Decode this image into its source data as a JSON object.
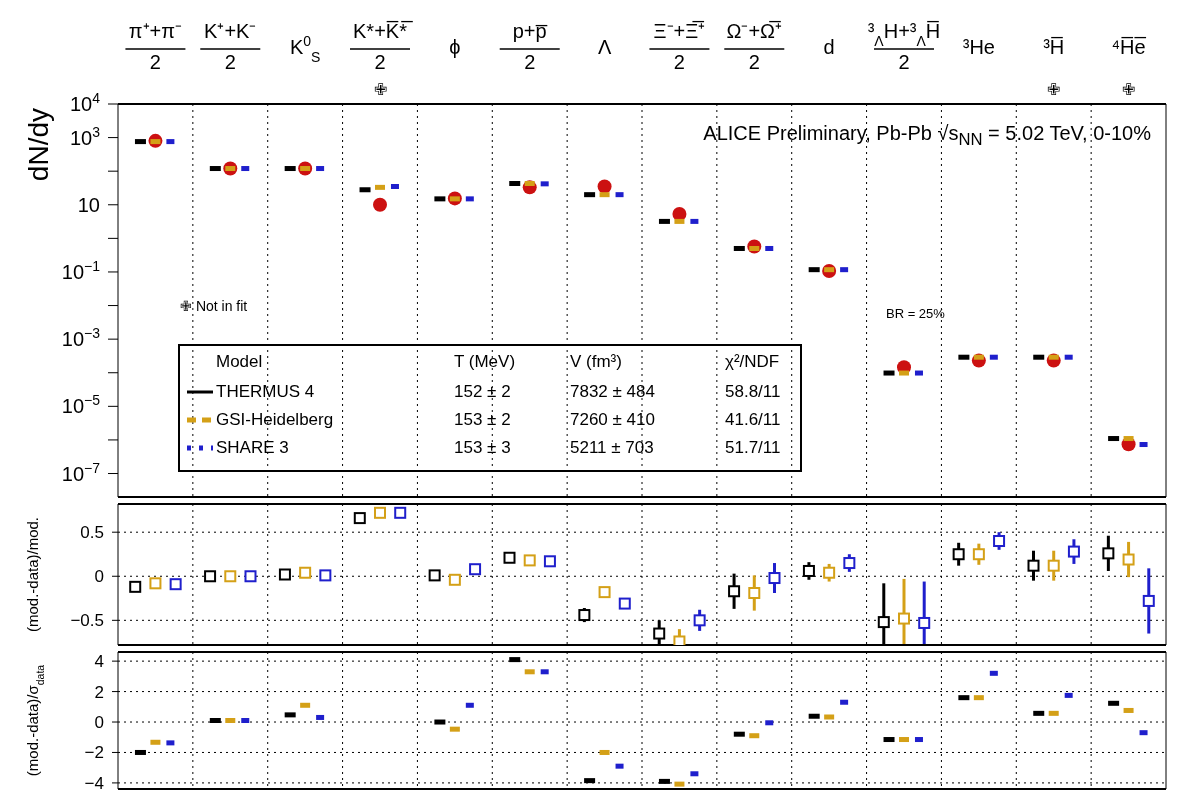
{
  "chart_data": [
    {
      "type": "scatter",
      "title": "ALICE Preliminary, Pb-Pb √s$_{NN}$ = 5.02 TeV, 0-10%",
      "ylabel": "dN/dy",
      "categories": [
        "π⁺+π⁻\n2",
        "K⁺+K⁻\n2",
        "K$^{0}$$_{S}$",
        "K*+K̅*̅\n2",
        "ϕ",
        "p+p̅\n2",
        "Λ",
        "Ξ⁻+Ξ̅⁺\n2",
        "Ω⁻+Ω̅⁺\n2",
        "d",
        "³$_{Λ}$H+³$_{Λ}$H̅\n2",
        "³He",
        "³H̅",
        "⁴H̅e̅"
      ],
      "log": true,
      "ylim": [
        2e-08,
        10000
      ],
      "yticks": [
        {
          "value": 10000,
          "label": "10$^{4}$"
        },
        {
          "value": 1000,
          "label": "10$^{3}$"
        },
        {
          "value": 100,
          "label": null
        },
        10,
        {
          "value": 1,
          "label": null
        },
        {
          "value": 0.1,
          "label": "10$^{−1}$"
        },
        {
          "value": 0.01,
          "label": null
        },
        {
          "value": 0.001,
          "label": "10$^{−3}$"
        },
        {
          "value": 0.0001,
          "label": null
        },
        {
          "value": 1e-05,
          "label": "10$^{−5}$"
        },
        {
          "value": 1e-06,
          "label": null
        },
        {
          "value": 1e-07,
          "label": "10$^{−7}$"
        }
      ],
      "grid": "x",
      "legend": "bottom left",
      "legend_title": "Model",
      "annotations": [
        "✙ Not in fit",
        "BR = 25%",
        "✙",
        "✙",
        "✙",
        "T (MeV)",
        "V (fm³)",
        "χ²/NDF",
        "152 ± 2",
        "7832 ± 484",
        "58.8/11",
        "153 ± 2",
        "7260 ± 410",
        "41.6/11",
        "153 ± 3",
        "5211 ± 703",
        "51.7/11"
      ],
      "series": [
        {
          "marker": "circle",
          "color": "#cc1111",
          "values": [
            800,
            120,
            120,
            10,
            15.5,
            33,
            35,
            5.3,
            0.57,
            0.107,
            0.000145,
            0.00023,
            0.00023,
            7.4e-07
          ]
        },
        {
          "name": "THERMUS 4",
          "color": "#000000",
          "line_style": "solid",
          "values": [
            760,
            120,
            120,
            28,
            15,
            43,
            20,
            3.2,
            0.5,
            0.117,
            9.8e-05,
            0.00029,
            0.00029,
            1.1e-06
          ]
        },
        {
          "name": "GSI-Heidelberg",
          "color": "#d4a017",
          "line_style": "dashed",
          "values": [
            760,
            120,
            120,
            33,
            15,
            43,
            20,
            3.2,
            0.5,
            0.117,
            9.8e-05,
            0.00029,
            0.00029,
            1.1e-06
          ]
        },
        {
          "name": "SHARE 3",
          "color": "#1f1fcc",
          "line_style": "dotted",
          "values": [
            760,
            120,
            120,
            35,
            15,
            42,
            20,
            3.2,
            0.5,
            0.117,
            9.8e-05,
            0.00029,
            0.00029,
            7.3e-07
          ]
        }
      ]
    },
    {
      "type": "scatter",
      "ylabel": "(mod.-data)/mod.",
      "categories": [
        null,
        null,
        null,
        null,
        null,
        null,
        null,
        null,
        null,
        null,
        null,
        null,
        null,
        null
      ],
      "tick_labels": "y",
      "ylim": [
        -0.78,
        0.82
      ],
      "yticks": [
        -0.5,
        0,
        0.5
      ],
      "grid": true,
      "marker": "square",
      "series": [
        {
          "color": "#000000",
          "values": [
            -0.12,
            0,
            0.02,
            0.66,
            0.01,
            0.21,
            -0.44,
            -0.65,
            -0.17,
            0.06,
            -0.52,
            0.25,
            0.12,
            0.26
          ],
          "errors": [
            null,
            null,
            null,
            null,
            0.03,
            null,
            0.08,
            [
              -0.78,
              -0.5
            ],
            0.2,
            0.1,
            [
              -0.78,
              -0.08
            ],
            0.13,
            0.17,
            0.2
          ]
        },
        {
          "color": "#d4a017",
          "values": [
            -0.08,
            0,
            0.04,
            0.72,
            -0.04,
            0.18,
            -0.18,
            -0.74,
            -0.19,
            0.04,
            -0.48,
            0.25,
            0.12,
            0.19
          ],
          "errors": [
            null,
            null,
            null,
            null,
            null,
            null,
            0.06,
            [
              -0.78,
              -0.6
            ],
            0.2,
            0.1,
            [
              -0.78,
              -0.03
            ],
            0.12,
            0.17,
            0.2
          ]
        },
        {
          "color": "#1f1fcc",
          "values": [
            -0.09,
            0,
            0.01,
            0.72,
            0.08,
            0.17,
            -0.31,
            -0.5,
            -0.02,
            0.15,
            -0.53,
            0.4,
            0.28,
            -0.28
          ],
          "errors": [
            null,
            null,
            null,
            null,
            null,
            null,
            0.06,
            0.12,
            0.17,
            0.1,
            [
              -0.78,
              -0.06
            ],
            0.1,
            0.14,
            0.37
          ]
        }
      ]
    },
    {
      "type": "scatter",
      "ylabel": "(mod.-data)/σ$_{data}$",
      "categories": [
        null,
        null,
        null,
        null,
        null,
        null,
        null,
        null,
        null,
        null,
        null,
        null,
        null,
        null
      ],
      "tick_labels": "y",
      "ylim": [
        -4.4,
        4.6
      ],
      "yticks": [
        -4,
        -2,
        0,
        2,
        4
      ],
      "grid": true,
      "series": [
        {
          "color": "#000000",
          "line_style": "solid",
          "values": [
            -2,
            0.1,
            0.47,
            null,
            0,
            4.1,
            -3.85,
            -3.9,
            -0.8,
            0.38,
            -1.15,
            1.6,
            0.57,
            1.23
          ]
        },
        {
          "color": "#d4a017",
          "line_style": "dashed",
          "values": [
            -1.33,
            0.1,
            1.1,
            null,
            -0.47,
            3.3,
            -2,
            -4.08,
            -0.9,
            0.33,
            -1.15,
            1.6,
            0.57,
            0.76
          ]
        },
        {
          "color": "#1f1fcc",
          "line_style": "dotted",
          "values": [
            -1.37,
            0.1,
            0.3,
            null,
            1.1,
            3.3,
            -2.9,
            -3.4,
            -0.05,
            1.3,
            -1.15,
            3.2,
            1.75,
            -0.7
          ]
        }
      ]
    }
  ]
}
